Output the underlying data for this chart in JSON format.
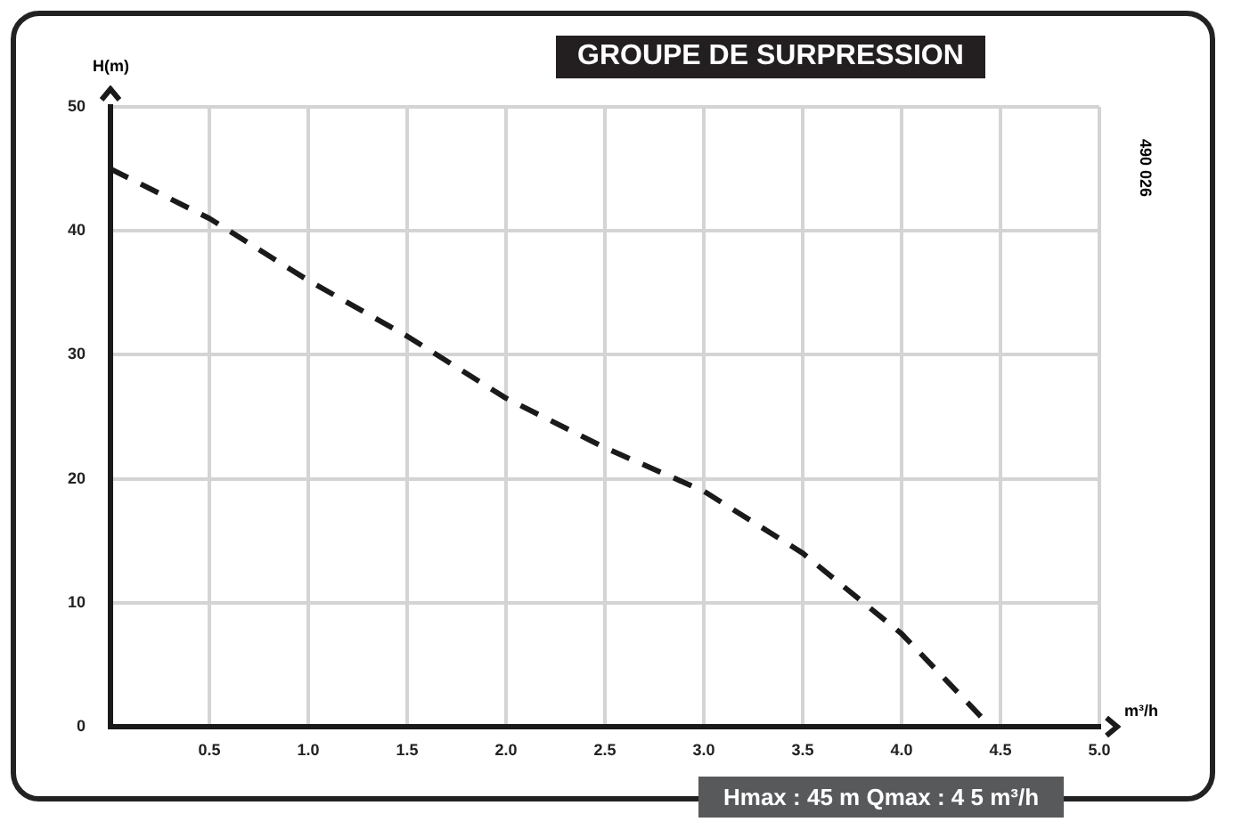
{
  "chart_data": {
    "type": "line",
    "title": "GROUPE DE SURPRESSION",
    "xlabel": "m³/h",
    "ylabel": "H(m)",
    "annotations": [
      "490 026",
      "Hmax : 45 m   Qmax : 4 5 m³/h"
    ],
    "x": [
      0,
      0.5,
      1.0,
      1.5,
      2.0,
      2.5,
      3.0,
      3.5,
      4.0,
      4.45
    ],
    "series": [
      {
        "color": "#1a1a1a",
        "values": [
          45,
          41,
          36,
          31.5,
          26.5,
          22.5,
          19,
          14,
          7.5,
          0
        ]
      }
    ],
    "line_style": "dashed",
    "marker": "none",
    "grid": true,
    "xlim": [
      0,
      5
    ],
    "ylim": [
      0,
      50
    ],
    "xticks": [
      0.5,
      {
        "value": 1,
        "label": "1.0"
      },
      1.5,
      {
        "value": 2,
        "label": "2.0"
      },
      2.5,
      {
        "value": 3,
        "label": "3.0"
      },
      3.5,
      {
        "value": 4,
        "label": "4.0"
      },
      4.5,
      {
        "value": 5,
        "label": "5.0"
      }
    ],
    "yticks": [
      0,
      10,
      20,
      30,
      40,
      50
    ]
  }
}
